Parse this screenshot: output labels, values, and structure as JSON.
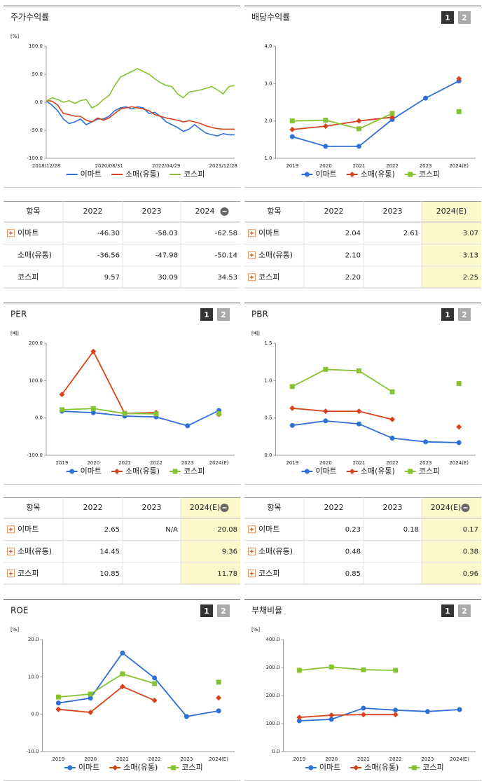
{
  "chart_data": [
    {
      "type": "line",
      "title": "주가수익률",
      "unit": "[%]",
      "markers": false,
      "categories": [
        "2018/12/28",
        null,
        null,
        null,
        null,
        null,
        null,
        null,
        null,
        null,
        null,
        "2020/08/31",
        null,
        null,
        null,
        null,
        null,
        null,
        null,
        null,
        null,
        "2022/04/29",
        null,
        null,
        null,
        null,
        null,
        null,
        null,
        null,
        null,
        "2023/12/28",
        null,
        null
      ],
      "ylim": [
        -100,
        100
      ],
      "yticks": [
        {
          "value": -100,
          "label": "-100.0"
        },
        {
          "value": -50,
          "label": "-50.0"
        },
        {
          "value": 0,
          "label": "0.0"
        },
        {
          "value": 50,
          "label": "50.0"
        },
        {
          "value": 100,
          "label": "100.0"
        }
      ],
      "series": [
        {
          "name": "이마트",
          "color": "#2f6fd8",
          "values": [
            2,
            -5,
            -15,
            -30,
            -38,
            -35,
            -30,
            -40,
            -35,
            -30,
            -30,
            -25,
            -15,
            -10,
            -8,
            -12,
            -8,
            -10,
            -20,
            -18,
            -25,
            -35,
            -40,
            -45,
            -52,
            -48,
            -40,
            -48,
            -55,
            -58,
            -60,
            -56,
            -58,
            -58
          ]
        },
        {
          "name": "소매(유통)",
          "color": "#d8431b",
          "values": [
            3,
            2,
            -5,
            -20,
            -22,
            -25,
            -25,
            -32,
            -35,
            -28,
            -32,
            -28,
            -20,
            -12,
            -10,
            -8,
            -10,
            -12,
            -15,
            -22,
            -25,
            -28,
            -30,
            -32,
            -35,
            -33,
            -35,
            -38,
            -42,
            -45,
            -47,
            -48,
            -48,
            -48
          ]
        },
        {
          "name": "코스피",
          "color": "#86c232",
          "values": [
            2,
            8,
            5,
            0,
            3,
            -2,
            3,
            5,
            -10,
            -5,
            5,
            12,
            30,
            45,
            50,
            55,
            60,
            55,
            50,
            42,
            35,
            30,
            28,
            15,
            8,
            18,
            20,
            22,
            25,
            28,
            22,
            15,
            28,
            30
          ]
        }
      ]
    },
    {
      "type": "line",
      "title": "배당수익률",
      "markers": true,
      "pages": [
        "1",
        "2"
      ],
      "categories": [
        "2019",
        "2020",
        "2021",
        "2022",
        "2023",
        "2024(E)"
      ],
      "ylim": [
        1,
        4
      ],
      "yticks": [
        {
          "value": 1,
          "label": "1.0"
        },
        {
          "value": 2,
          "label": "2.0"
        },
        {
          "value": 3,
          "label": "3.0"
        },
        {
          "value": 4,
          "label": "4.0"
        }
      ],
      "series": [
        {
          "name": "이마트",
          "color": "#2f6fd8",
          "values": [
            1.58,
            1.32,
            1.32,
            2.04,
            2.61,
            3.07
          ]
        },
        {
          "name": "소매(유통)",
          "color": "#d8431b",
          "values": [
            1.77,
            1.86,
            2.0,
            2.1,
            null,
            3.13
          ]
        },
        {
          "name": "코스피",
          "color": "#86c232",
          "values": [
            2.0,
            2.02,
            1.79,
            2.2,
            null,
            2.25
          ]
        }
      ]
    },
    {
      "type": "line",
      "title": "PER",
      "unit": "[배]",
      "markers": true,
      "pages": [
        "1",
        "2"
      ],
      "categories": [
        "2019",
        "2020",
        "2021",
        "2022",
        "2023",
        "2024(E)"
      ],
      "ylim": [
        -100,
        200
      ],
      "yticks": [
        {
          "value": -100,
          "label": "-100.0"
        },
        {
          "value": 0,
          "label": "0.0"
        },
        {
          "value": 100,
          "label": "100.0"
        },
        {
          "value": 200,
          "label": "200.0"
        }
      ],
      "series": [
        {
          "name": "이마트",
          "color": "#2f6fd8",
          "values": [
            18,
            14,
            5,
            2.65,
            -21,
            20.08
          ]
        },
        {
          "name": "소매(유통)",
          "color": "#d8431b",
          "values": [
            63,
            178,
            12,
            14.45,
            null,
            9.36
          ]
        },
        {
          "name": "코스피",
          "color": "#86c232",
          "values": [
            22,
            25,
            12,
            10.85,
            null,
            11.78
          ]
        }
      ]
    },
    {
      "type": "line",
      "title": "PBR",
      "unit": "[배]",
      "markers": true,
      "pages": [
        "1",
        "2"
      ],
      "categories": [
        "2019",
        "2020",
        "2021",
        "2022",
        "2023",
        "2024(E)"
      ],
      "ylim": [
        0,
        1.5
      ],
      "yticks": [
        {
          "value": 0,
          "label": "0.0"
        },
        0.5,
        {
          "value": 1,
          "label": "1.0"
        },
        1.5
      ],
      "series": [
        {
          "name": "이마트",
          "color": "#2f6fd8",
          "values": [
            0.4,
            0.46,
            0.42,
            0.23,
            0.18,
            0.17
          ]
        },
        {
          "name": "소매(유통)",
          "color": "#d8431b",
          "values": [
            0.63,
            0.59,
            0.59,
            0.48,
            null,
            0.38
          ]
        },
        {
          "name": "코스피",
          "color": "#86c232",
          "values": [
            0.92,
            1.15,
            1.13,
            0.85,
            null,
            0.96
          ]
        }
      ]
    },
    {
      "type": "line",
      "title": "ROE",
      "unit": "[%]",
      "markers": true,
      "pages": [
        "1",
        "2"
      ],
      "categories": [
        "2019",
        "2020",
        "2021",
        "2022",
        "2023",
        "2024(E)"
      ],
      "ylim": [
        -10,
        20
      ],
      "yticks": [
        {
          "value": -10,
          "label": "-10.0"
        },
        {
          "value": 0,
          "label": "0.0"
        },
        {
          "value": 10,
          "label": "10.0"
        },
        {
          "value": 20,
          "label": "20.0"
        }
      ],
      "series": [
        {
          "name": "이마트",
          "color": "#2f6fd8",
          "values": [
            3.0,
            4.3,
            16.4,
            9.7,
            -0.6,
            0.9
          ]
        },
        {
          "name": "소매(유통)",
          "color": "#d8431b",
          "values": [
            1.3,
            0.5,
            7.4,
            3.7,
            null,
            4.4
          ]
        },
        {
          "name": "코스피",
          "color": "#86c232",
          "values": [
            4.6,
            5.4,
            10.8,
            8.2,
            null,
            8.6
          ]
        }
      ]
    },
    {
      "type": "line",
      "title": "부채비율",
      "unit": "[%]",
      "markers": true,
      "pages": [
        "1",
        "2"
      ],
      "categories": [
        "2019",
        "2020",
        "2021",
        "2022",
        "2023",
        "2024(E)"
      ],
      "ylim": [
        0,
        400
      ],
      "yticks": [
        {
          "value": 0,
          "label": "0.0"
        },
        {
          "value": 100,
          "label": "100.0"
        },
        {
          "value": 200,
          "label": "200.0"
        },
        {
          "value": 300,
          "label": "300.0"
        },
        {
          "value": 400,
          "label": "400.0"
        }
      ],
      "series": [
        {
          "name": "이마트",
          "color": "#2f6fd8",
          "values": [
            110,
            115,
            155,
            148,
            143,
            150
          ]
        },
        {
          "name": "소매(유통)",
          "color": "#d8431b",
          "values": [
            122,
            130,
            132,
            132,
            null,
            null
          ]
        },
        {
          "name": "코스피",
          "color": "#86c232",
          "values": [
            290,
            302,
            292,
            290,
            null,
            null
          ]
        }
      ]
    }
  ],
  "tables": [
    {
      "columns": [
        "항목",
        "2022",
        "2023",
        "2024"
      ],
      "highlight_last": false,
      "collapse_icon": true,
      "rows": [
        {
          "label": "이마트",
          "expandable": true,
          "values": [
            "-46.30",
            "-58.03",
            "-62.58"
          ]
        },
        {
          "label": "소매(유통)",
          "expandable": false,
          "values": [
            "-36.56",
            "-47.98",
            "-50.14"
          ]
        },
        {
          "label": "코스피",
          "expandable": false,
          "values": [
            "9.57",
            "30.09",
            "34.53"
          ]
        }
      ]
    },
    {
      "columns": [
        "항목",
        "2022",
        "2023",
        "2024(E)"
      ],
      "highlight_last": true,
      "collapse_icon": false,
      "rows": [
        {
          "label": "이마트",
          "expandable": true,
          "values": [
            "2.04",
            "2.61",
            "3.07"
          ]
        },
        {
          "label": "소매(유통)",
          "expandable": true,
          "values": [
            "2.10",
            null,
            "3.13"
          ]
        },
        {
          "label": "코스피",
          "expandable": true,
          "values": [
            "2.20",
            null,
            "2.25"
          ]
        }
      ]
    },
    {
      "columns": [
        "항목",
        "2022",
        "2023",
        "2024(E)"
      ],
      "highlight_last": true,
      "collapse_icon": true,
      "rows": [
        {
          "label": "이마트",
          "expandable": true,
          "values": [
            "2.65",
            "N/A",
            "20.08"
          ]
        },
        {
          "label": "소매(유통)",
          "expandable": true,
          "values": [
            "14.45",
            null,
            "9.36"
          ]
        },
        {
          "label": "코스피",
          "expandable": true,
          "values": [
            "10.85",
            null,
            "11.78"
          ]
        }
      ]
    },
    {
      "columns": [
        "항목",
        "2022",
        "2023",
        "2024(E)"
      ],
      "highlight_last": true,
      "collapse_icon": true,
      "rows": [
        {
          "label": "이마트",
          "expandable": true,
          "values": [
            "0.23",
            "0.18",
            "0.17"
          ]
        },
        {
          "label": "소매(유통)",
          "expandable": true,
          "values": [
            "0.48",
            null,
            "0.38"
          ]
        },
        {
          "label": "코스피",
          "expandable": true,
          "values": [
            "0.85",
            null,
            "0.96"
          ]
        }
      ]
    }
  ]
}
